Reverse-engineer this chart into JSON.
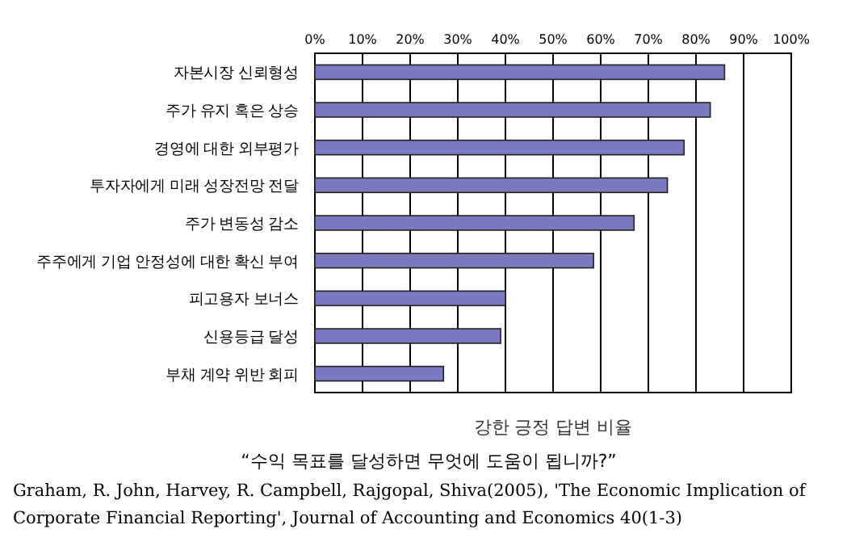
{
  "chart_data": {
    "type": "bar",
    "orientation": "horizontal",
    "categories": [
      "자본시장 신뢰형성",
      "주가 유지 혹은 상승",
      "경영에 대한 외부평가",
      "투자자에게 미래 성장전망 전달",
      "주가 변동성 감소",
      "주주에게 기업 안정성에 대한 확신 부여",
      "피고용자 보너스",
      "신용등급 달성",
      "부채 계약 위반 회피"
    ],
    "values": [
      86,
      83,
      77.5,
      74,
      67,
      58.5,
      40,
      39,
      27
    ],
    "color": "#7b79bd",
    "xlim": [
      0,
      100
    ],
    "xticks": [
      {
        "value": 0,
        "label": "0%"
      },
      {
        "value": 10,
        "label": "10%"
      },
      {
        "value": 20,
        "label": "20%"
      },
      {
        "value": 30,
        "label": "30%"
      },
      {
        "value": 40,
        "label": "40%"
      },
      {
        "value": 50,
        "label": "50%"
      },
      {
        "value": 60,
        "label": "60%"
      },
      {
        "value": 70,
        "label": "70%"
      },
      {
        "value": 80,
        "label": "80%"
      },
      {
        "value": 90,
        "label": "90%"
      },
      {
        "value": 100,
        "label": "100%"
      }
    ],
    "grid": "x",
    "xlabel": "강한 긍정 답변 비율",
    "annotations": [
      "“수익 목표를 달성하면 무엇에 도움이 됩니까?”",
      "Graham, R. John, Harvey, R. Campbell, Rajgopal, Shiva(2005), 'The Economic Implication of Corporate Financial Reporting', Journal of Accounting and Economics 40(1-3)"
    ]
  }
}
